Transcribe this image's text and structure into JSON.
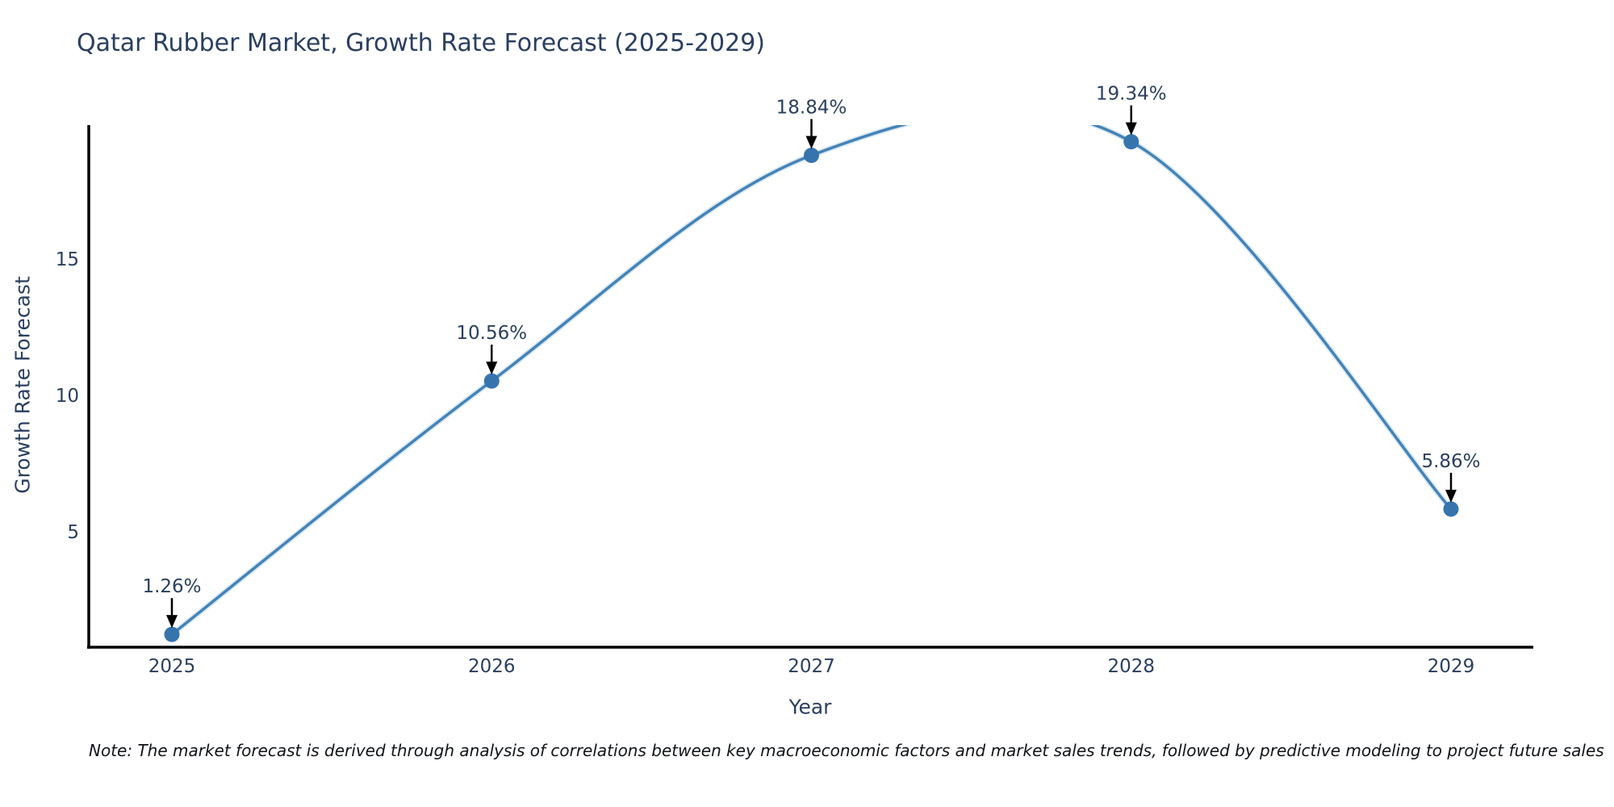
{
  "title": "Qatar Rubber Market, Growth Rate Forecast (2025-2029)",
  "note": "Note: The market forecast is derived through analysis of correlations between key macroeconomic factors and market sales trends, followed by predictive modeling to project future sales",
  "chart_data": {
    "type": "line",
    "title": "Qatar Rubber Market, Growth Rate Forecast (2025-2029)",
    "x": [
      2025,
      2026,
      2027,
      2028,
      2029
    ],
    "series": [
      {
        "name": "Growth Rate Forecast",
        "values": [
          1.26,
          10.56,
          18.84,
          19.34,
          5.86
        ]
      }
    ],
    "point_labels": [
      "1.26%",
      "10.56%",
      "18.84%",
      "19.34%",
      "5.86%"
    ],
    "xlabel": "Year",
    "ylabel": "Growth Rate Forecast",
    "xticks": [
      "2025",
      "2026",
      "2027",
      "2028",
      "2029"
    ],
    "yticks": [
      5,
      10,
      15
    ],
    "xlim": [
      2025,
      2029
    ],
    "ylim": [
      0.85,
      19.95
    ],
    "grid": false,
    "legend_position": "none",
    "line_shape": "spline",
    "annotations_have_arrows": true,
    "colors": {
      "line": "#4383b8",
      "line_halo": "#aecde4",
      "marker": "#3674ae",
      "arrow": "#000000",
      "axis": "#000000",
      "text": "#2a3f5f"
    }
  }
}
